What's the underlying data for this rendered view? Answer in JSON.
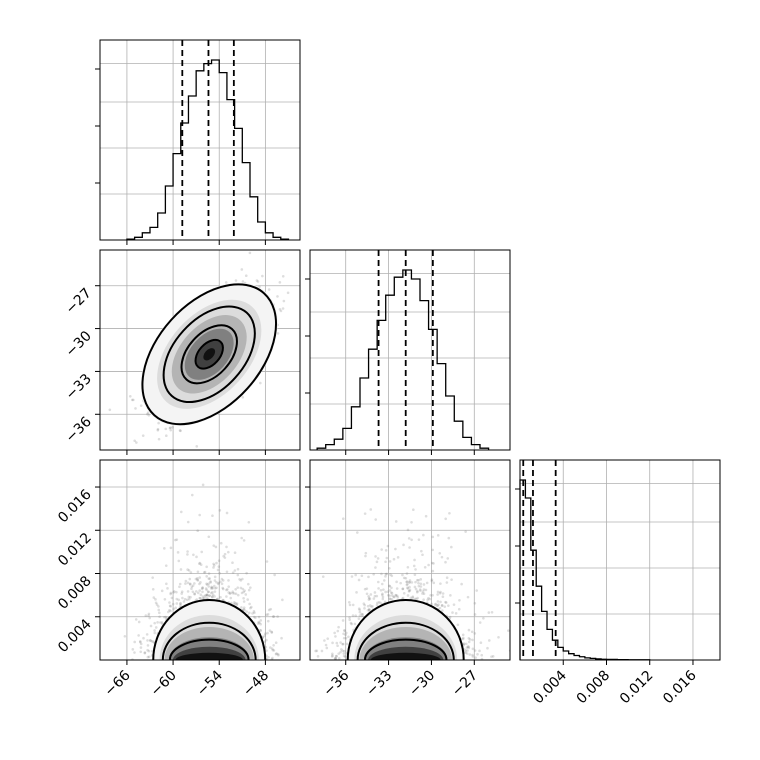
{
  "chart_data": {
    "type": "corner",
    "parameters": [
      {
        "range": [
          -69.5,
          -43.5
        ],
        "ticks": [
          -66,
          -60,
          -54,
          -48
        ],
        "tick_labels": [
          "−66",
          "−60",
          "−54",
          "−48"
        ],
        "mean": -55.3,
        "sd": 3.2,
        "quantiles": [
          -58.8,
          -55.4,
          -52.1
        ],
        "hist_peak": 1.0
      },
      {
        "range": [
          -38.5,
          -24.5
        ],
        "ticks": [
          -36,
          -33,
          -30,
          -27
        ],
        "tick_labels": [
          "−36",
          "−33",
          "−30",
          "−27"
        ],
        "mean": -31.8,
        "sd": 1.9,
        "quantiles": [
          -33.7,
          -31.8,
          -29.9
        ],
        "hist_peak": 1.0
      },
      {
        "range": [
          0.0,
          0.0185
        ],
        "ticks": [
          0.004,
          0.008,
          0.012,
          0.016
        ],
        "tick_labels": [
          "0.004",
          "0.008",
          "0.012",
          "0.016"
        ],
        "quantiles": [
          0.0003,
          0.0012,
          0.0033
        ],
        "hist_peak": 1.0
      }
    ],
    "marginal_histograms": [
      {
        "param": 0,
        "bin_edges": [
          -66,
          -65,
          -64,
          -63,
          -62,
          -61,
          -60,
          -59,
          -58,
          -57,
          -56,
          -55,
          -54,
          -53,
          -52,
          -51,
          -50,
          -49,
          -48,
          -47,
          -46,
          -45
        ],
        "counts": [
          0.005,
          0.015,
          0.04,
          0.07,
          0.15,
          0.3,
          0.48,
          0.65,
          0.8,
          0.94,
          0.98,
          1.0,
          0.93,
          0.78,
          0.62,
          0.43,
          0.24,
          0.1,
          0.04,
          0.015,
          0.005
        ]
      },
      {
        "param": 1,
        "bin_edges": [
          -38,
          -37.4,
          -36.8,
          -36.2,
          -35.6,
          -35.0,
          -34.4,
          -33.8,
          -33.2,
          -32.6,
          -32.0,
          -31.4,
          -30.8,
          -30.2,
          -29.6,
          -29.0,
          -28.4,
          -27.8,
          -27.2,
          -26.6,
          -26.0
        ],
        "counts": [
          0.01,
          0.03,
          0.06,
          0.12,
          0.24,
          0.4,
          0.56,
          0.72,
          0.86,
          0.96,
          1.0,
          0.95,
          0.83,
          0.67,
          0.48,
          0.3,
          0.16,
          0.07,
          0.03,
          0.01
        ]
      },
      {
        "param": 2,
        "bin_edges": [
          0.0,
          0.0005,
          0.001,
          0.0015,
          0.002,
          0.0025,
          0.003,
          0.0035,
          0.004,
          0.0045,
          0.005,
          0.0055,
          0.006,
          0.0065,
          0.007,
          0.0075,
          0.008,
          0.009,
          0.01,
          0.011,
          0.012
        ],
        "counts": [
          1.0,
          0.9,
          0.61,
          0.41,
          0.27,
          0.17,
          0.11,
          0.07,
          0.05,
          0.035,
          0.025,
          0.018,
          0.012,
          0.009,
          0.006,
          0.004,
          0.003,
          0.002,
          0.001,
          0.001
        ]
      }
    ],
    "joint_distributions": [
      {
        "x_param": 0,
        "y_param": 1,
        "correlation": 0.6
      },
      {
        "x_param": 0,
        "y_param": 2,
        "correlation": 0.0
      },
      {
        "x_param": 1,
        "y_param": 2,
        "correlation": 0.0
      }
    ],
    "grid": true
  }
}
